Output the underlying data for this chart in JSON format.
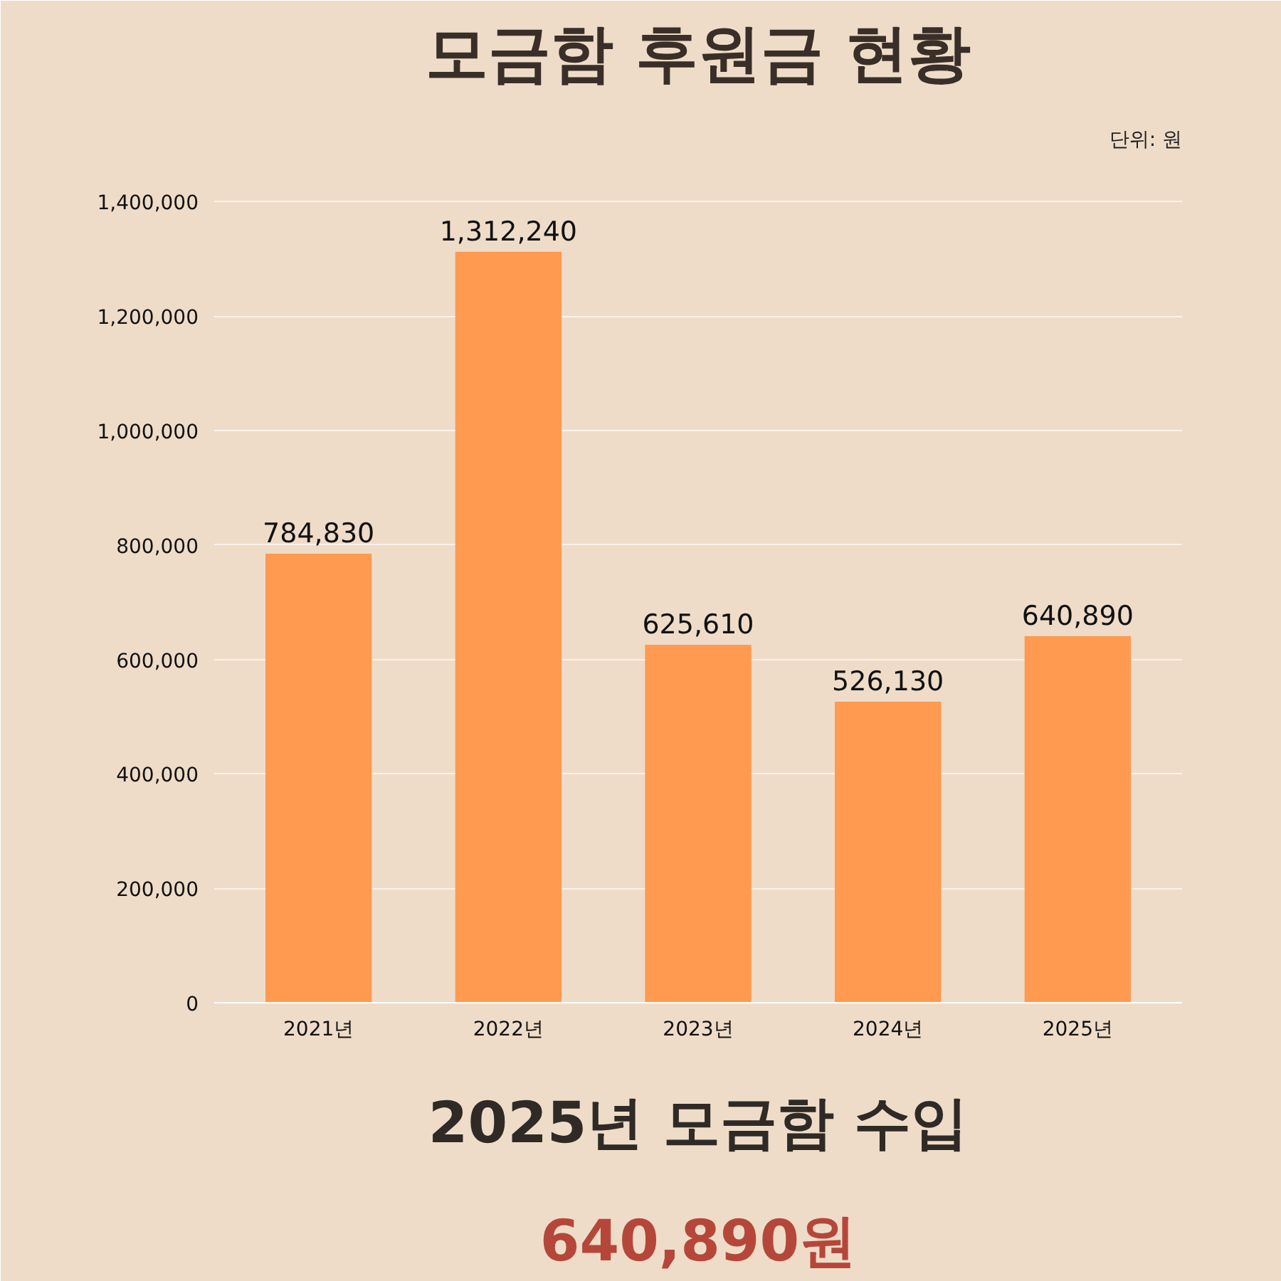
{
  "chart_data": {
    "type": "bar",
    "title": "모금함 후원금 현황",
    "categories": [
      "2021년",
      "2022년",
      "2023년",
      "2024년",
      "2025년"
    ],
    "values": [
      784830,
      1312240,
      625610,
      526130,
      640890
    ],
    "color": "#ff9a50",
    "ylim": [
      0,
      1450000
    ],
    "yticks": [
      0,
      {
        "value": 200000,
        "label": "200,000"
      },
      {
        "value": 400000,
        "label": "400,000"
      },
      {
        "value": 600000,
        "label": "600,000"
      },
      {
        "value": 800000,
        "label": "800,000"
      },
      {
        "value": 1000000,
        "label": "1,000,000"
      },
      {
        "value": 1200000,
        "label": "1,200,000"
      },
      {
        "value": 1400000,
        "label": "1,400,000"
      }
    ],
    "value_labels": [
      "784,830",
      "1,312,240",
      "625,610",
      "526,130",
      "640,890"
    ],
    "grid": "y",
    "annotations": [
      "단위: 원",
      "2025년 모금함 수입",
      "640,890원"
    ]
  }
}
